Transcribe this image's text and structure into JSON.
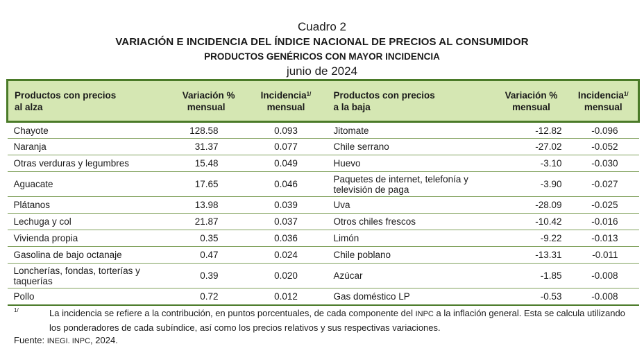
{
  "title": {
    "cuadro": "Cuadro 2",
    "main": "VARIACIÓN E INCIDENCIA DEL ÍNDICE NACIONAL DE PRECIOS AL CONSUMIDOR",
    "sub": "PRODUCTOS GENÉRICOS CON MAYOR INCIDENCIA",
    "period": "junio de 2024"
  },
  "table": {
    "headers": {
      "up_product_1": "Productos con precios",
      "up_product_2": "al alza",
      "up_var_1": "Variación %",
      "up_var_2": "mensual",
      "up_inc_1": "Incidencia",
      "up_inc_sup": "1/",
      "up_inc_2": "mensual",
      "down_product_1": "Productos con precios",
      "down_product_2": "a la baja",
      "down_var_1": "Variación %",
      "down_var_2": "mensual",
      "down_inc_1": "Incidencia",
      "down_inc_sup": "1/",
      "down_inc_2": "mensual"
    },
    "rows": [
      {
        "up_product": "Chayote",
        "up_var": "128.58",
        "up_inc": "0.093",
        "down_product": "Jitomate",
        "down_var": "-12.82",
        "down_inc": "-0.096"
      },
      {
        "up_product": "Naranja",
        "up_var": "31.37",
        "up_inc": "0.077",
        "down_product": "Chile serrano",
        "down_var": "-27.02",
        "down_inc": "-0.052"
      },
      {
        "up_product": "Otras verduras y legumbres",
        "up_var": "15.48",
        "up_inc": "0.049",
        "down_product": "Huevo",
        "down_var": "-3.10",
        "down_inc": "-0.030"
      },
      {
        "up_product": "Aguacate",
        "up_var": "17.65",
        "up_inc": "0.046",
        "down_product_1": "Paquetes de internet, telefonía y",
        "down_product_2": "televisión de paga",
        "down_var": "-3.90",
        "down_inc": "-0.027"
      },
      {
        "up_product": "Plátanos",
        "up_var": "13.98",
        "up_inc": "0.039",
        "down_product": "Uva",
        "down_var": "-28.09",
        "down_inc": "-0.025"
      },
      {
        "up_product": "Lechuga y col",
        "up_var": "21.87",
        "up_inc": "0.037",
        "down_product": "Otros chiles frescos",
        "down_var": "-10.42",
        "down_inc": "-0.016"
      },
      {
        "up_product": "Vivienda propia",
        "up_var": "0.35",
        "up_inc": "0.036",
        "down_product": "Limón",
        "down_var": "-9.22",
        "down_inc": "-0.013"
      },
      {
        "up_product": "Gasolina de bajo octanaje",
        "up_var": "0.47",
        "up_inc": "0.024",
        "down_product": "Chile poblano",
        "down_var": "-13.31",
        "down_inc": "-0.011"
      },
      {
        "up_product_1": "Loncherías, fondas, torterías y",
        "up_product_2": "taquerías",
        "up_var": "0.39",
        "up_inc": "0.020",
        "down_product": "Azúcar",
        "down_var": "-1.85",
        "down_inc": "-0.008"
      },
      {
        "up_product": "Pollo",
        "up_var": "0.72",
        "up_inc": "0.012",
        "down_product": "Gas doméstico LP",
        "down_var": "-0.53",
        "down_inc": "-0.008"
      }
    ]
  },
  "footnote": {
    "mark": "1/",
    "text_a": "La incidencia se refiere a la contribución, en puntos porcentuales, de cada componente del ",
    "text_inpc": "INPC",
    "text_b": " a la inflación general. Esta se calcula utilizando los ponderadores de cada subíndice, así como los precios relativos y sus respectivas variaciones."
  },
  "source": {
    "label": "Fuente: ",
    "org": "INEGI. INPC",
    "year": ", 2024."
  }
}
